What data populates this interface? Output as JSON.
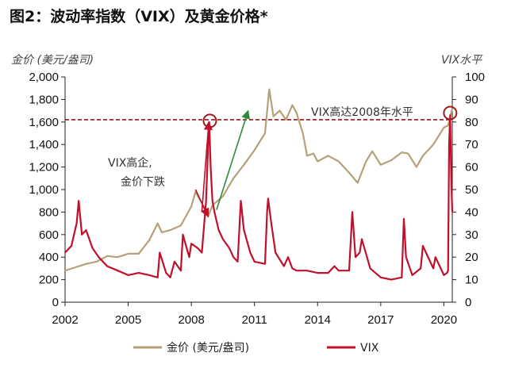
{
  "title": "图2：波动率指数（VIX）及黄金价格*",
  "colors": {
    "gold": "#b5a179",
    "vix": "#c0102a",
    "ref_line": "#8b1a1a",
    "circle": "#9b1b1b",
    "arrow_green": "#2e8b3a",
    "axis": "#222222"
  },
  "chart_data": {
    "type": "line",
    "left_axis_label": "金价 (美元/盎司)",
    "right_axis_label": "VIX水平",
    "left_ylim": [
      0,
      2000
    ],
    "right_ylim": [
      0,
      100
    ],
    "left_ticks": [
      "0",
      "200",
      "400",
      "600",
      "800",
      "1,000",
      "1,200",
      "1,400",
      "1,600",
      "1,800",
      "2,000"
    ],
    "right_ticks": [
      "0",
      "10",
      "20",
      "30",
      "40",
      "50",
      "60",
      "70",
      "80",
      "90",
      "100"
    ],
    "xlim": [
      2002.0,
      2020.4
    ],
    "x_ticks": [
      "2002",
      "2005",
      "2008",
      "2011",
      "2014",
      "2017",
      "2020"
    ],
    "reference_line": {
      "left_value": 1620
    },
    "annotations": {
      "vix_high": "VIX高达2008年水平",
      "crash_line1": "VIX高企,",
      "crash_line2": "金价下跌"
    },
    "series": [
      {
        "name": "金价 (美元/盎司)",
        "axis": "left",
        "x": [
          2002.0,
          2002.5,
          2003.0,
          2003.5,
          2004.0,
          2004.5,
          2005.0,
          2005.5,
          2006.0,
          2006.4,
          2006.6,
          2007.0,
          2007.5,
          2008.0,
          2008.2,
          2008.5,
          2008.8,
          2009.0,
          2009.5,
          2010.0,
          2010.5,
          2011.0,
          2011.5,
          2011.7,
          2011.9,
          2012.2,
          2012.5,
          2012.8,
          2013.0,
          2013.3,
          2013.5,
          2013.8,
          2014.0,
          2014.5,
          2015.0,
          2015.5,
          2015.9,
          2016.3,
          2016.6,
          2017.0,
          2017.5,
          2018.0,
          2018.3,
          2018.7,
          2019.0,
          2019.5,
          2020.0,
          2020.2,
          2020.4
        ],
        "values": [
          280,
          310,
          340,
          360,
          410,
          400,
          430,
          430,
          550,
          700,
          620,
          640,
          680,
          850,
          980,
          880,
          760,
          860,
          940,
          1100,
          1220,
          1350,
          1500,
          1890,
          1650,
          1700,
          1620,
          1750,
          1680,
          1500,
          1300,
          1320,
          1250,
          1300,
          1250,
          1150,
          1060,
          1250,
          1340,
          1220,
          1260,
          1330,
          1320,
          1200,
          1300,
          1400,
          1550,
          1570,
          1720
        ]
      },
      {
        "name": "VIX",
        "axis": "right",
        "x": [
          2002.0,
          2002.3,
          2002.55,
          2002.65,
          2002.8,
          2003.0,
          2003.3,
          2003.6,
          2004.0,
          2004.5,
          2005.0,
          2005.5,
          2006.0,
          2006.4,
          2006.5,
          2006.8,
          2007.0,
          2007.2,
          2007.5,
          2007.6,
          2007.9,
          2008.0,
          2008.3,
          2008.5,
          2008.7,
          2008.8,
          2008.85,
          2008.92,
          2009.0,
          2009.1,
          2009.3,
          2009.5,
          2009.8,
          2010.0,
          2010.2,
          2010.35,
          2010.5,
          2010.8,
          2011.0,
          2011.5,
          2011.6,
          2011.65,
          2011.8,
          2012.0,
          2012.4,
          2012.6,
          2012.8,
          2013.0,
          2013.5,
          2014.0,
          2014.5,
          2014.8,
          2015.0,
          2015.5,
          2015.65,
          2015.8,
          2016.0,
          2016.1,
          2016.5,
          2017.0,
          2017.5,
          2018.0,
          2018.1,
          2018.2,
          2018.5,
          2018.9,
          2019.0,
          2019.5,
          2019.6,
          2020.0,
          2020.15,
          2020.2,
          2020.25,
          2020.3,
          2020.35,
          2020.4
        ],
        "values": [
          22,
          25,
          35,
          45,
          30,
          32,
          24,
          20,
          16,
          14,
          12,
          13,
          12,
          11,
          22,
          13,
          11,
          18,
          14,
          30,
          20,
          26,
          24,
          22,
          45,
          70,
          80,
          60,
          45,
          40,
          32,
          28,
          24,
          20,
          18,
          45,
          32,
          22,
          18,
          17,
          40,
          46,
          35,
          22,
          16,
          20,
          15,
          14,
          14,
          13,
          13,
          16,
          14,
          14,
          40,
          20,
          22,
          28,
          15,
          11,
          10,
          11,
          37,
          20,
          12,
          15,
          25,
          15,
          20,
          12,
          13,
          14,
          70,
          83,
          55,
          40
        ]
      }
    ]
  }
}
